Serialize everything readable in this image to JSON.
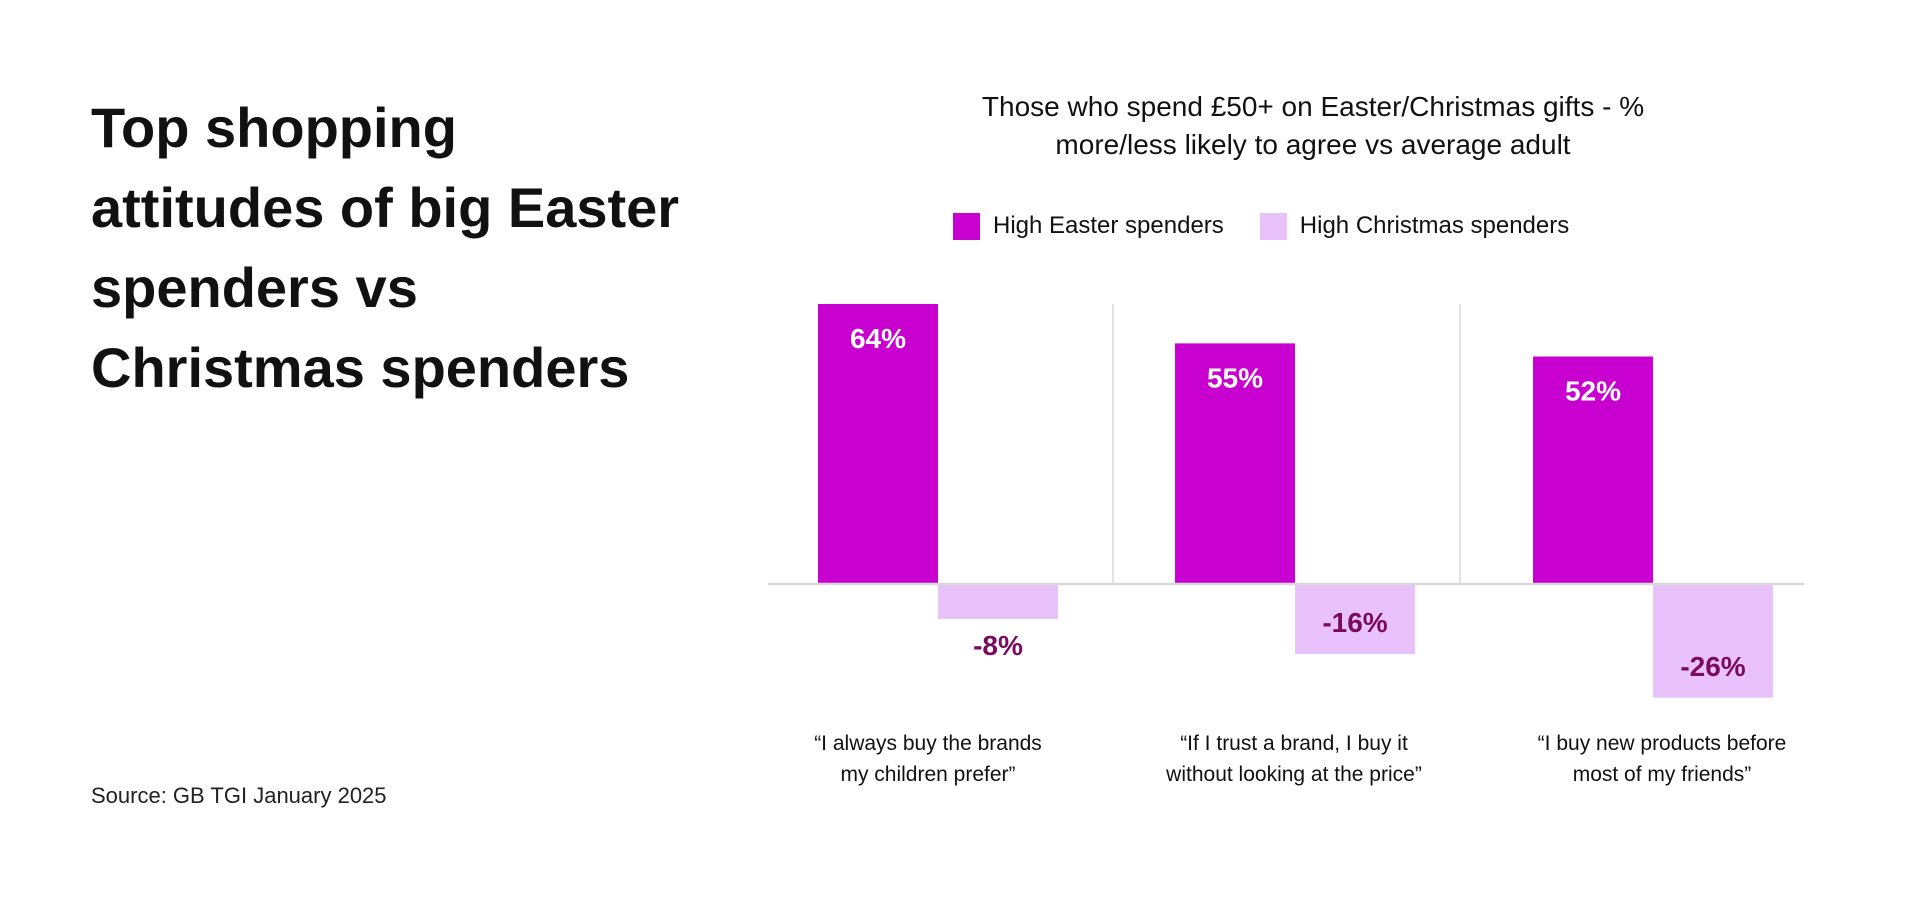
{
  "headline": "Top shopping attitudes of big Easter spenders vs Christmas spenders",
  "source": "Source: GB TGI January 2025",
  "colors": {
    "easter": "#c800d0",
    "christmas": "#e9c2fc",
    "negative_label": "#7a0a5e",
    "positive_label": "#ffffff",
    "axis": "#d9d9d9"
  },
  "chart_data": {
    "type": "bar",
    "title_lines": [
      "Those who spend £50+ on Easter/Christmas gifts - %",
      "more/less likely to agree vs average adult"
    ],
    "categories": [
      [
        "“I always buy the brands",
        "my children prefer”"
      ],
      [
        "“If I trust a brand, I buy it",
        "without looking at the price”"
      ],
      [
        "“I buy new products before",
        "most of my friends”"
      ]
    ],
    "series": [
      {
        "name": "High Easter spenders",
        "values": [
          64,
          55,
          52
        ],
        "labels": [
          "64%",
          "55%",
          "52%"
        ]
      },
      {
        "name": "High Christmas spenders",
        "values": [
          -8,
          -16,
          -26
        ],
        "labels": [
          "-8%",
          "-16%",
          "-26%"
        ]
      }
    ],
    "ylim": [
      -30,
      65
    ],
    "grid": false,
    "legend": "top"
  }
}
